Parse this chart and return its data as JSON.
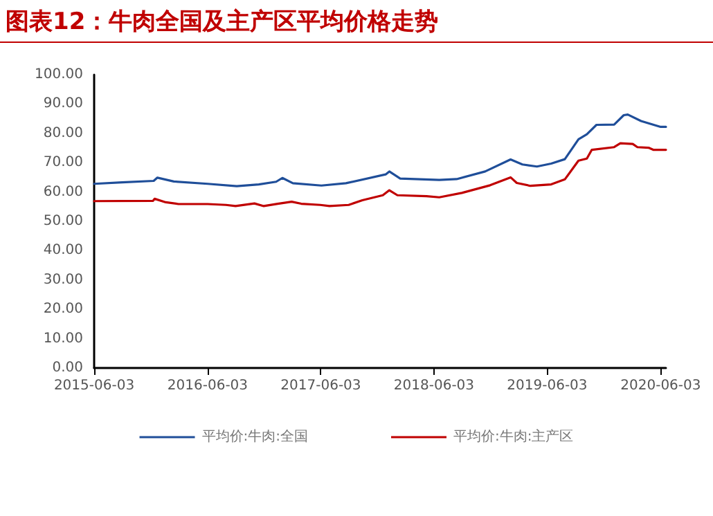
{
  "chart_data": {
    "type": "line",
    "title": "图表12：牛肉全国及主产区平均价格走势",
    "xlim": [
      "2015-06-03",
      "2020-06-20"
    ],
    "xticks": [
      "2015-06-03",
      "2016-06-03",
      "2017-06-03",
      "2018-06-03",
      "2019-06-03",
      "2020-06-03"
    ],
    "ylim": [
      0,
      100
    ],
    "yticks": [
      {
        "value": 0,
        "label": "0.00"
      },
      {
        "value": 10,
        "label": "10.00"
      },
      {
        "value": 20,
        "label": "20.00"
      },
      {
        "value": 30,
        "label": "30.00"
      },
      {
        "value": 40,
        "label": "40.00"
      },
      {
        "value": 50,
        "label": "50.00"
      },
      {
        "value": 60,
        "label": "60.00"
      },
      {
        "value": 70,
        "label": "70.00"
      },
      {
        "value": 80,
        "label": "80.00"
      },
      {
        "value": 90,
        "label": "90.00"
      },
      {
        "value": 100,
        "label": "100.00"
      }
    ],
    "grid": false,
    "legend": "bottom",
    "marker": "none",
    "line_style": "solid",
    "series": [
      {
        "name": "平均价:牛肉:全国",
        "color": "#1f4e99",
        "x": [
          "2015-06-03",
          "2015-09-01",
          "2015-12-12",
          "2015-12-24",
          "2016-02-15",
          "2016-06-03",
          "2016-09-05",
          "2016-11-15",
          "2017-01-10",
          "2017-01-30",
          "2017-03-05",
          "2017-06-05",
          "2017-08-23",
          "2017-12-29",
          "2018-01-10",
          "2018-02-14",
          "2018-06-20",
          "2018-08-15",
          "2018-11-15",
          "2019-02-05",
          "2019-03-15",
          "2019-05-01",
          "2019-06-16",
          "2019-07-30",
          "2019-09-12",
          "2019-10-09",
          "2019-11-09",
          "2020-01-05",
          "2020-02-05",
          "2020-02-18",
          "2020-04-01",
          "2020-06-03",
          "2020-06-20"
        ],
        "values": [
          62.8,
          63.3,
          63.8,
          64.9,
          63.6,
          62.8,
          62.0,
          62.6,
          63.5,
          64.8,
          63.0,
          62.2,
          63.0,
          66.0,
          67.0,
          64.6,
          64.1,
          64.4,
          67.0,
          71.1,
          69.4,
          68.7,
          69.7,
          71.2,
          78.0,
          79.7,
          82.9,
          83.0,
          86.2,
          86.4,
          84.2,
          82.2,
          82.2
        ]
      },
      {
        "name": "平均价:牛肉:主产区",
        "color": "#c00000",
        "x": [
          "2015-06-03",
          "2015-12-10",
          "2015-12-15",
          "2016-01-20",
          "2016-03-01",
          "2016-06-03",
          "2016-08-01",
          "2016-09-01",
          "2016-11-01",
          "2016-12-01",
          "2017-01-15",
          "2017-03-01",
          "2017-04-01",
          "2017-06-01",
          "2017-07-01",
          "2017-09-01",
          "2017-10-15",
          "2017-12-20",
          "2018-01-10",
          "2018-02-05",
          "2018-05-10",
          "2018-06-20",
          "2018-09-01",
          "2018-12-01",
          "2019-02-05",
          "2019-02-25",
          "2019-04-10",
          "2019-06-16",
          "2019-07-30",
          "2019-09-12",
          "2019-10-09",
          "2019-10-25",
          "2020-01-05",
          "2020-01-25",
          "2020-03-05",
          "2020-03-20",
          "2020-04-25",
          "2020-05-10",
          "2020-06-20"
        ],
        "values": [
          56.9,
          57.0,
          57.7,
          56.5,
          55.9,
          55.9,
          55.6,
          55.2,
          56.1,
          55.2,
          56.0,
          56.7,
          56.0,
          55.6,
          55.2,
          55.6,
          57.2,
          58.9,
          60.6,
          58.9,
          58.6,
          58.2,
          59.7,
          62.3,
          65.0,
          63.1,
          62.1,
          62.6,
          64.3,
          70.7,
          71.4,
          74.4,
          75.3,
          76.6,
          76.4,
          75.3,
          75.1,
          74.4,
          74.4
        ]
      }
    ]
  }
}
